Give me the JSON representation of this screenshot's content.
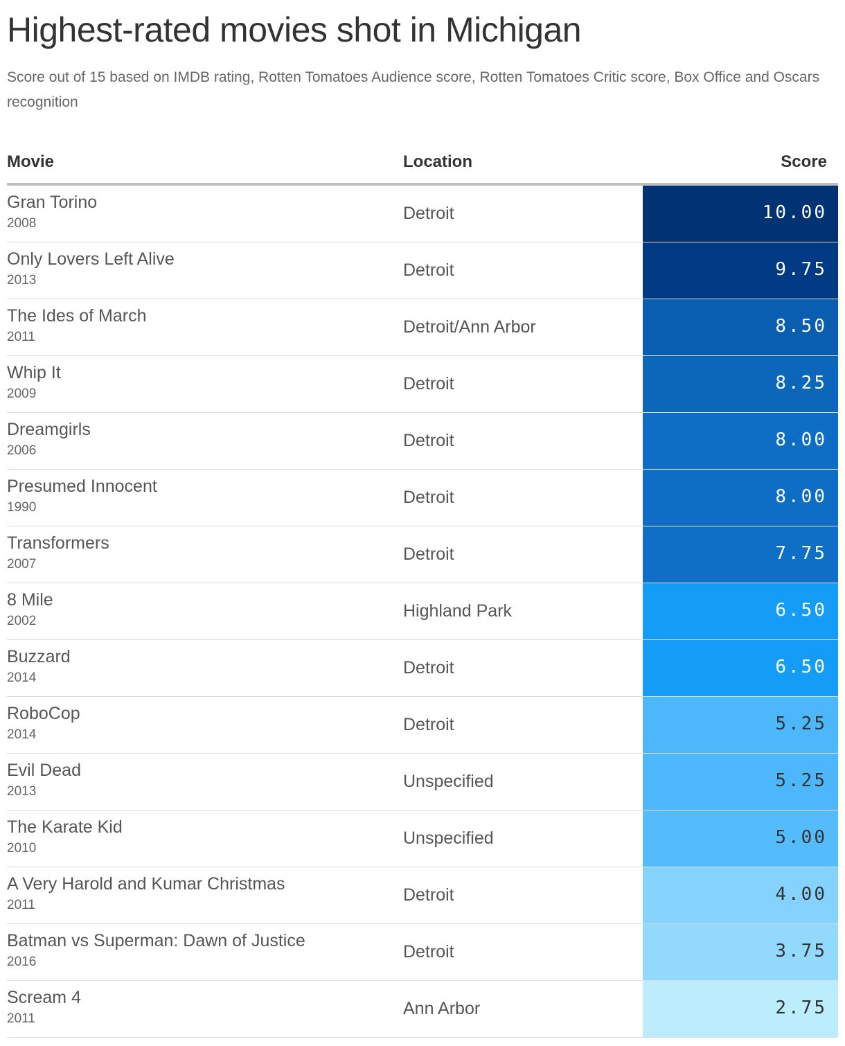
{
  "title": "Highest-rated movies shot in Michigan",
  "subtitle": "Score out of 15 based on IMDB rating, Rotten Tomatoes Audience score, Rotten Tomatoes Critic score, Box Office and Oscars recognition",
  "columns": {
    "movie": "Movie",
    "location": "Location",
    "score": "Score"
  },
  "chart_data": {
    "type": "table",
    "title": "Highest-rated movies shot in Michigan",
    "subtitle": "Score out of 15 based on IMDB rating, Rotten Tomatoes Audience score, Rotten Tomatoes Critic score, Box Office and Oscars recognition",
    "columns": [
      "Movie",
      "Location",
      "Score"
    ],
    "rows": [
      {
        "movie": "Gran Torino",
        "year": "2008",
        "location": "Detroit",
        "score": 10.0,
        "score_label": "10.00",
        "color": "#003274",
        "text_color": "#ffffff"
      },
      {
        "movie": "Only Lovers Left Alive",
        "year": "2013",
        "location": "Detroit",
        "score": 9.75,
        "score_label": "9.75",
        "color": "#003a85",
        "text_color": "#ffffff"
      },
      {
        "movie": "The Ides of March",
        "year": "2011",
        "location": "Detroit/Ann Arbor",
        "score": 8.5,
        "score_label": "8.50",
        "color": "#0a5eb0",
        "text_color": "#ffffff"
      },
      {
        "movie": "Whip It",
        "year": "2009",
        "location": "Detroit",
        "score": 8.25,
        "score_label": "8.25",
        "color": "#0c66ba",
        "text_color": "#ffffff"
      },
      {
        "movie": "Dreamgirls",
        "year": "2006",
        "location": "Detroit",
        "score": 8.0,
        "score_label": "8.00",
        "color": "#0e6ec5",
        "text_color": "#ffffff"
      },
      {
        "movie": "Presumed Innocent",
        "year": "1990",
        "location": "Detroit",
        "score": 8.0,
        "score_label": "8.00",
        "color": "#0e6ec5",
        "text_color": "#ffffff"
      },
      {
        "movie": "Transformers",
        "year": "2007",
        "location": "Detroit",
        "score": 7.75,
        "score_label": "7.75",
        "color": "#0f6fc6",
        "text_color": "#ffffff"
      },
      {
        "movie": "8 Mile",
        "year": "2002",
        "location": "Highland Park",
        "score": 6.5,
        "score_label": "6.50",
        "color": "#149cf7",
        "text_color": "#ffffff"
      },
      {
        "movie": "Buzzard",
        "year": "2014",
        "location": "Detroit",
        "score": 6.5,
        "score_label": "6.50",
        "color": "#149cf7",
        "text_color": "#ffffff"
      },
      {
        "movie": "RoboCop",
        "year": "2014",
        "location": "Detroit",
        "score": 5.25,
        "score_label": "5.25",
        "color": "#4cb8fb",
        "text_color": "#333333"
      },
      {
        "movie": "Evil Dead",
        "year": "2013",
        "location": "Unspecified",
        "score": 5.25,
        "score_label": "5.25",
        "color": "#4cb8fb",
        "text_color": "#333333"
      },
      {
        "movie": "The Karate Kid",
        "year": "2010",
        "location": "Unspecified",
        "score": 5.0,
        "score_label": "5.00",
        "color": "#55bcfb",
        "text_color": "#333333"
      },
      {
        "movie": "A Very Harold and Kumar Christmas",
        "year": "2011",
        "location": "Detroit",
        "score": 4.0,
        "score_label": "4.00",
        "color": "#85d3fc",
        "text_color": "#333333"
      },
      {
        "movie": "Batman vs Superman: Dawn of Justice",
        "year": "2016",
        "location": "Detroit",
        "score": 3.75,
        "score_label": "3.75",
        "color": "#93d9fd",
        "text_color": "#333333"
      },
      {
        "movie": "Scream 4",
        "year": "2011",
        "location": "Ann Arbor",
        "score": 2.75,
        "score_label": "2.75",
        "color": "#bcedfd",
        "text_color": "#333333"
      }
    ]
  }
}
